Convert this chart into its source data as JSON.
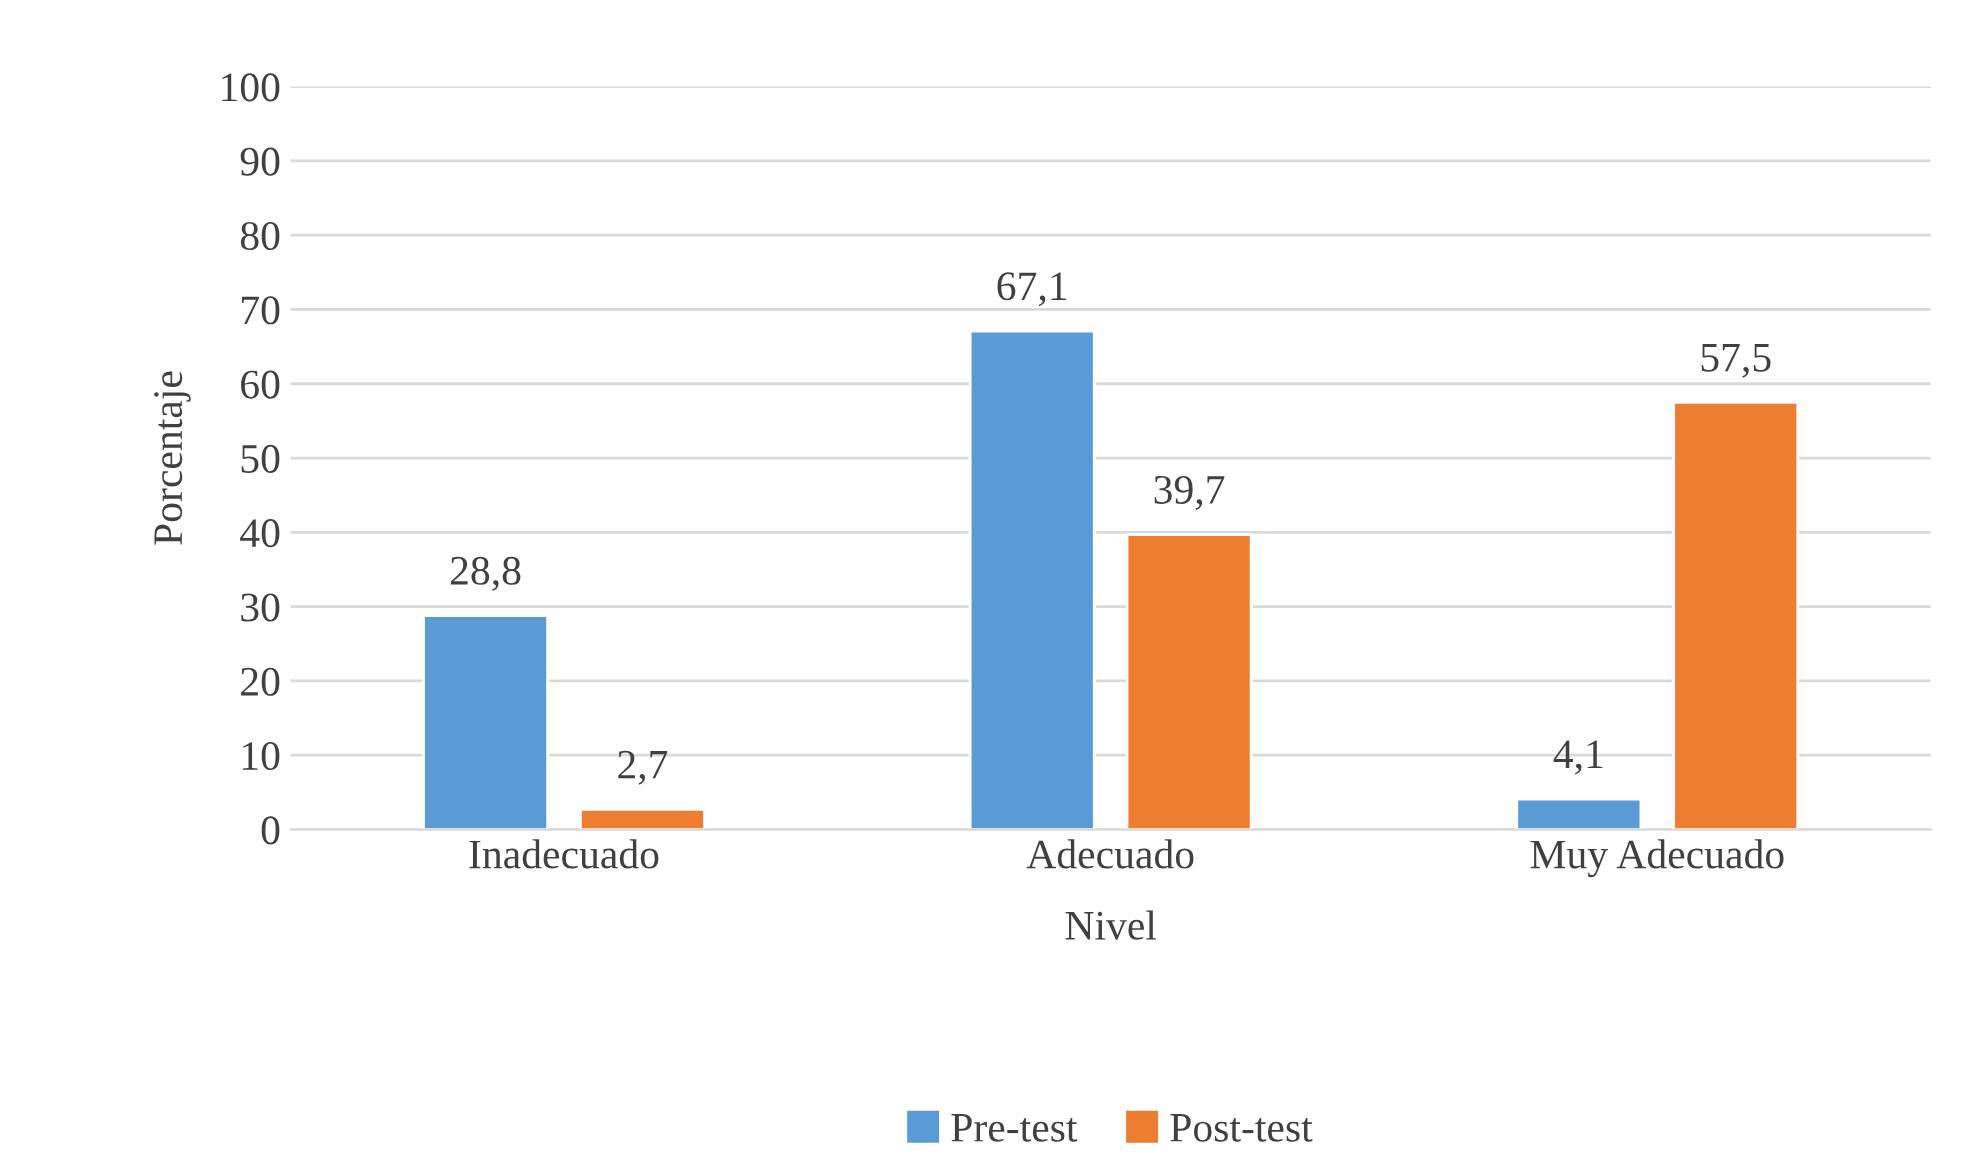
{
  "chart_data": {
    "type": "bar",
    "xlabel": "Nivel",
    "ylabel": "Porcentaje",
    "categories": [
      "Inadecuado",
      "Adecuado",
      "Muy Adecuado"
    ],
    "series": [
      {
        "name": "Pre-test",
        "color": "#5b9bd5",
        "values": [
          28.8,
          67.1,
          4.1
        ],
        "value_labels": [
          "28,8",
          "67,1",
          "4,1"
        ]
      },
      {
        "name": "Post-test",
        "color": "#ed7d31",
        "values": [
          2.7,
          39.7,
          57.5
        ],
        "value_labels": [
          "2,7",
          "39,7",
          "57,5"
        ]
      }
    ],
    "ylim": [
      0,
      100
    ],
    "yticks": [
      0,
      10,
      20,
      30,
      40,
      50,
      60,
      70,
      80,
      90,
      100
    ],
    "grid": "y",
    "legend": "bottom"
  }
}
